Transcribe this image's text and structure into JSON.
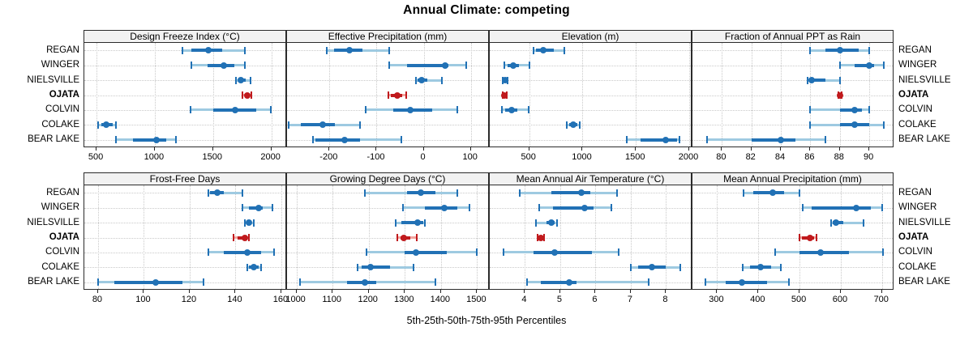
{
  "title": "Annual Climate: competing",
  "xlabel": "5th-25th-50th-75th-95th Percentiles",
  "sites": [
    "REGAN",
    "WINGER",
    "NIELSVILLE",
    "OJATA",
    "COLVIN",
    "COLAKE",
    "BEAR LAKE"
  ],
  "highlight_site": "OJATA",
  "percentiles": [
    "5th",
    "25th",
    "50th",
    "75th",
    "95th"
  ],
  "colors": {
    "blue_dark": "#2171B5",
    "blue_light": "#9ECAE1",
    "red_dark": "#C01A1D",
    "red_light": "#F2A49E",
    "strip_bg": "#F2F2F2",
    "border": "#2B2B2B",
    "grid": "#C9C9C9"
  },
  "chart_data": [
    {
      "type": "dotplot_percentiles",
      "title": "Design Freeze Index (°C)",
      "row": 0,
      "col": 0,
      "xlim": [
        395,
        2135
      ],
      "ticks": [
        500,
        1000,
        1500,
        2000
      ],
      "series": {
        "REGAN": [
          1235,
          1315,
          1460,
          1580,
          1770
        ],
        "WINGER": [
          1315,
          1455,
          1590,
          1680,
          1770
        ],
        "NIELSVILLE": [
          1695,
          1715,
          1740,
          1780,
          1820
        ],
        "OJATA": [
          1755,
          1775,
          1795,
          1810,
          1830
        ],
        "COLVIN": [
          1310,
          1500,
          1690,
          1870,
          1995
        ],
        "COLAKE": [
          510,
          540,
          580,
          640,
          665
        ],
        "BEAR LAKE": [
          665,
          815,
          1015,
          1100,
          1180
        ]
      }
    },
    {
      "type": "dotplot_percentiles",
      "title": "Effective Precipitation (mm)",
      "row": 0,
      "col": 1,
      "xlim": [
        -290,
        140
      ],
      "ticks": [
        -200,
        -100,
        0,
        100
      ],
      "series": {
        "REGAN": [
          -205,
          -190,
          -158,
          -130,
          -73
        ],
        "WINGER": [
          -73,
          -35,
          45,
          53,
          90
        ],
        "NIELSVILLE": [
          -17,
          -13,
          -5,
          8,
          39
        ],
        "OJATA": [
          -75,
          -70,
          -56,
          -45,
          -38
        ],
        "COLVIN": [
          -123,
          -64,
          -28,
          18,
          72
        ],
        "COLAKE": [
          -287,
          -260,
          -215,
          -189,
          -136
        ],
        "BEAR LAKE": [
          -235,
          -230,
          -168,
          -136,
          -48
        ]
      }
    },
    {
      "type": "dotplot_percentiles",
      "title": "Elevation (m)",
      "row": 0,
      "col": 2,
      "xlim": [
        130,
        2030
      ],
      "ticks": [
        500,
        1000,
        1500,
        2000
      ],
      "series": {
        "REGAN": [
          540,
          560,
          630,
          730,
          830
        ],
        "WINGER": [
          270,
          300,
          350,
          400,
          505
        ],
        "NIELSVILLE": [
          250,
          262,
          275,
          288,
          300
        ],
        "OJATA": [
          248,
          256,
          268,
          280,
          290
        ],
        "COLVIN": [
          245,
          275,
          335,
          390,
          495
        ],
        "COLAKE": [
          855,
          875,
          910,
          950,
          975
        ],
        "BEAR LAKE": [
          1415,
          1545,
          1780,
          1885,
          1910
        ]
      }
    },
    {
      "type": "dotplot_percentiles",
      "title": "Fraction of Annual PPT as Rain",
      "row": 0,
      "col": 3,
      "xlim": [
        78,
        91.7
      ],
      "ticks": [
        80,
        82,
        84,
        86,
        88,
        90
      ],
      "series": {
        "REGAN": [
          86,
          87,
          88,
          89.3,
          90
        ],
        "WINGER": [
          88,
          89,
          90,
          90.3,
          91
        ],
        "NIELSVILLE": [
          85.8,
          86,
          86.1,
          87,
          88
        ],
        "OJATA": [
          87.9,
          88,
          88,
          88,
          88.1
        ],
        "COLVIN": [
          86,
          88,
          89,
          89.5,
          90
        ],
        "COLAKE": [
          86,
          88,
          89,
          90,
          91
        ],
        "BEAR LAKE": [
          79,
          82,
          84,
          85,
          87
        ]
      }
    },
    {
      "type": "dotplot_percentiles",
      "title": "Frost-Free Days",
      "row": 1,
      "col": 0,
      "xlim": [
        74,
        162.5
      ],
      "ticks": [
        80,
        100,
        120,
        140,
        160
      ],
      "series": {
        "REGAN": [
          128,
          129,
          132,
          135,
          143
        ],
        "WINGER": [
          143,
          146,
          150,
          152,
          156
        ],
        "NIELSVILLE": [
          144,
          145,
          146,
          147,
          148
        ],
        "OJATA": [
          139,
          141,
          144,
          145,
          146
        ],
        "COLVIN": [
          128,
          135,
          145,
          151,
          157
        ],
        "COLAKE": [
          145,
          146,
          148,
          150,
          151
        ],
        "BEAR LAKE": [
          80,
          87,
          105,
          117,
          126
        ]
      }
    },
    {
      "type": "dotplot_percentiles",
      "title": "Growing Degree Days (°C)",
      "row": 1,
      "col": 1,
      "xlim": [
        974,
        1535
      ],
      "ticks": [
        1000,
        1100,
        1200,
        1300,
        1400,
        1500
      ],
      "series": {
        "REGAN": [
          1190,
          1305,
          1345,
          1385,
          1445
        ],
        "WINGER": [
          1295,
          1355,
          1410,
          1445,
          1480
        ],
        "NIELSVILLE": [
          1275,
          1290,
          1335,
          1350,
          1355
        ],
        "OJATA": [
          1280,
          1288,
          1298,
          1315,
          1333
        ],
        "COLVIN": [
          1195,
          1300,
          1330,
          1415,
          1500
        ],
        "COLAKE": [
          1170,
          1180,
          1205,
          1260,
          1325
        ],
        "BEAR LAKE": [
          1010,
          1140,
          1190,
          1220,
          1385
        ]
      }
    },
    {
      "type": "dotplot_percentiles",
      "title": "Mean Annual Air Temperature (°C)",
      "row": 1,
      "col": 2,
      "xlim": [
        3.0,
        8.75
      ],
      "ticks": [
        4,
        5,
        6,
        7,
        8
      ],
      "series": {
        "REGAN": [
          3.85,
          4.75,
          5.6,
          5.85,
          6.6
        ],
        "WINGER": [
          4.4,
          4.8,
          5.7,
          5.95,
          6.45
        ],
        "NIELSVILLE": [
          4.3,
          4.6,
          4.75,
          4.85,
          4.9
        ],
        "OJATA": [
          4.35,
          4.4,
          4.45,
          4.5,
          4.55
        ],
        "COLVIN": [
          3.4,
          4.25,
          4.85,
          5.9,
          6.65
        ],
        "COLAKE": [
          7.0,
          7.2,
          7.6,
          8.0,
          8.4
        ],
        "BEAR LAKE": [
          4.05,
          4.45,
          5.25,
          5.45,
          7.5
        ]
      }
    },
    {
      "type": "dotplot_percentiles",
      "title": "Mean Annual Precipitation (mm)",
      "row": 1,
      "col": 3,
      "xlim": [
        240,
        730
      ],
      "ticks": [
        300,
        400,
        500,
        600,
        700
      ],
      "series": {
        "REGAN": [
          364,
          387,
          435,
          462,
          500
        ],
        "WINGER": [
          508,
          530,
          637,
          672,
          700
        ],
        "NIELSVILLE": [
          577,
          580,
          588,
          607,
          655
        ],
        "OJATA": [
          500,
          505,
          525,
          535,
          541
        ],
        "COLVIN": [
          440,
          500,
          550,
          620,
          703
        ],
        "COLAKE": [
          362,
          380,
          406,
          431,
          455
        ],
        "BEAR LAKE": [
          272,
          320,
          361,
          422,
          474
        ]
      }
    }
  ]
}
